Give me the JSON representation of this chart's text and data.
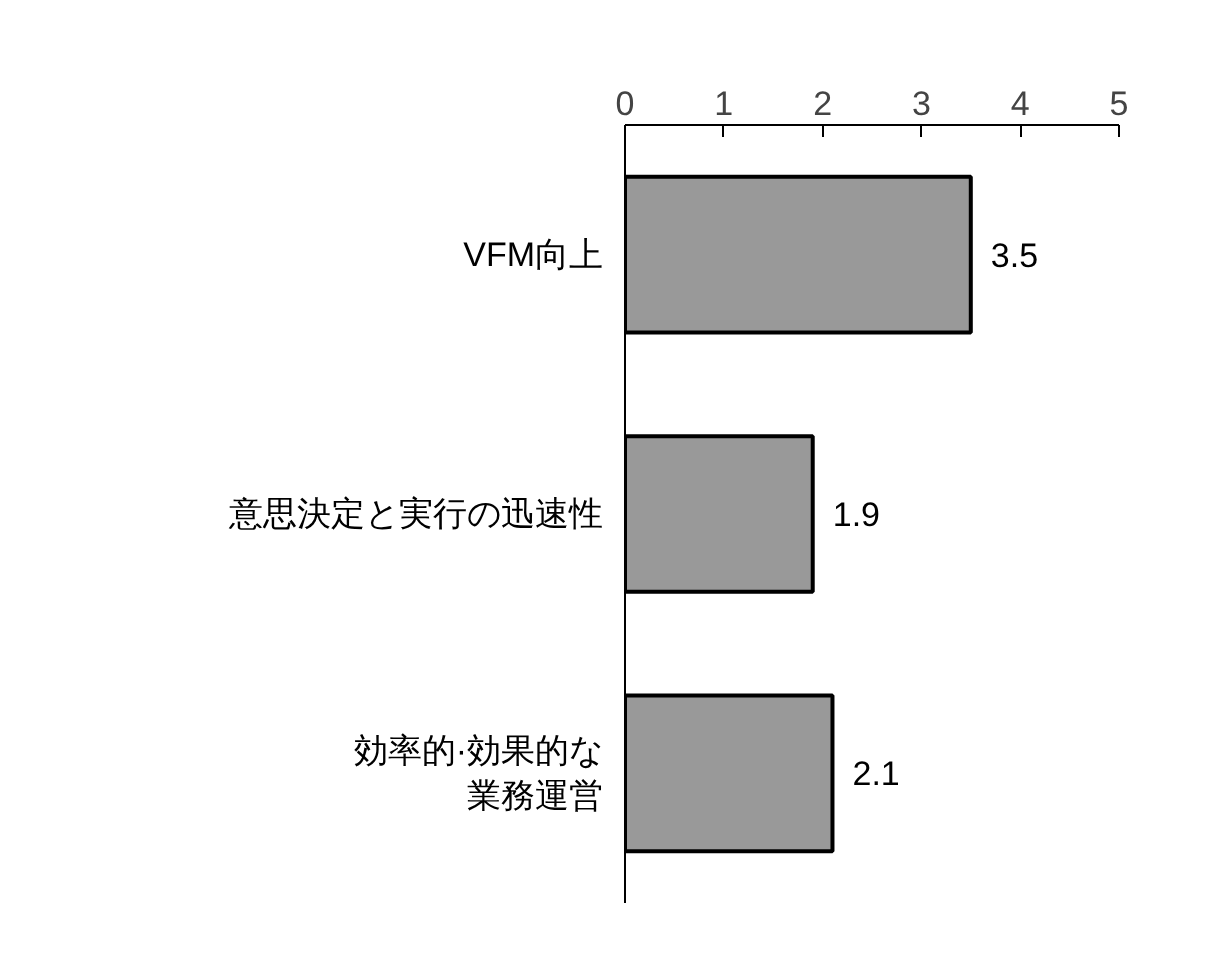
{
  "chart_data": {
    "type": "bar",
    "orientation": "horizontal",
    "categories": [
      "VFM向上",
      "意思決定と実行の迅速性",
      "効率的·効果的な業務運営"
    ],
    "values": [
      3.5,
      1.9,
      2.1
    ],
    "color": "#999999",
    "xlim": [
      0,
      5
    ],
    "xticks": [
      0,
      1,
      2,
      3,
      4,
      5
    ],
    "data_labels": true
  }
}
